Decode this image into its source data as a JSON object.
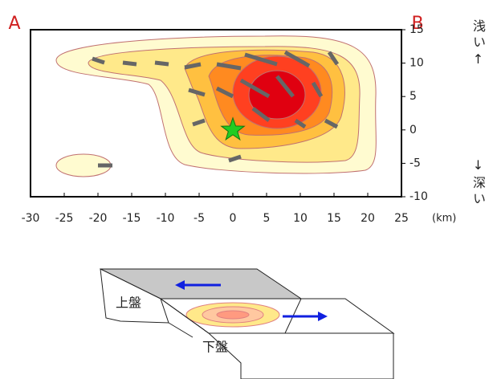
{
  "chart_data": {
    "type": "contour",
    "xlim": [
      -30,
      25
    ],
    "ylim": [
      -10,
      15
    ],
    "xticks": [
      -30,
      -25,
      -20,
      -15,
      -10,
      -5,
      0,
      5,
      10,
      15,
      20,
      25
    ],
    "yticks": [
      -10,
      -5,
      0,
      5,
      10,
      15
    ],
    "x_unit": "(km)",
    "hypocenter": {
      "x": 0,
      "y": 0,
      "color": "#22cc22"
    },
    "annotations": {
      "left_end": "A",
      "right_end": "B",
      "shallow": "浅い↑",
      "deep": "↓深い",
      "hanging_wall": "上盤",
      "foot_wall": "下盤"
    }
  }
}
